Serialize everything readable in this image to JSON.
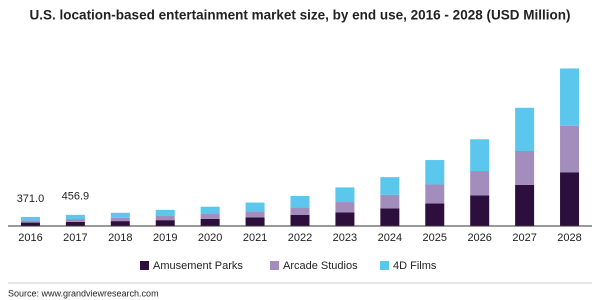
{
  "chart_data": {
    "type": "stacked_bar",
    "title": "U.S. location-based entertainment market size, by end use, 2016 - 2028 (USD Million)",
    "categories": [
      "2016",
      "2017",
      "2018",
      "2019",
      "2020",
      "2021",
      "2022",
      "2023",
      "2024",
      "2025",
      "2026",
      "2027",
      "2028"
    ],
    "series": [
      {
        "name": "Amusement Parks",
        "color": "#2d0f3e",
        "values": [
          140,
          170,
          200,
          240,
          290,
          350,
          450,
          560,
          720,
          920,
          1250,
          1680,
          2200
        ]
      },
      {
        "name": "Arcade Studios",
        "color": "#a38dbd",
        "values": [
          90,
          115,
          135,
          170,
          200,
          240,
          320,
          420,
          560,
          780,
          1000,
          1390,
          1900
        ]
      },
      {
        "name": "4D Films",
        "color": "#5bc7ed",
        "values": [
          141,
          172,
          205,
          250,
          300,
          370,
          460,
          600,
          720,
          1000,
          1300,
          1770,
          2350
        ]
      }
    ],
    "totals": [
      371,
      456.9
    ],
    "total_labels": [
      "371.0",
      "456.9"
    ],
    "ylim": [
      0,
      7000
    ],
    "source": "Source: www.grandviewresearch.com"
  }
}
